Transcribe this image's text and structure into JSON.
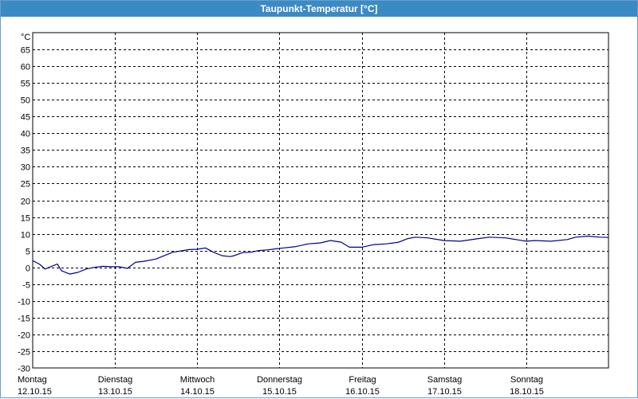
{
  "window": {
    "title": "Taupunkt-Temperatur [°C]"
  },
  "chart_data": {
    "type": "line",
    "title": "Taupunkt-Temperatur [°C]",
    "ylabel": "°C",
    "xlabel": "",
    "ylim": [
      -30,
      70
    ],
    "yticks": [
      65,
      60,
      55,
      50,
      45,
      40,
      35,
      30,
      25,
      20,
      15,
      10,
      5,
      0,
      -5,
      -10,
      -15,
      -20,
      -25,
      -30
    ],
    "xlim": [
      0,
      7
    ],
    "xticks": [
      {
        "day": "Montag",
        "date": "12.10.15"
      },
      {
        "day": "Dienstag",
        "date": "13.10.15"
      },
      {
        "day": "Mittwoch",
        "date": "14.10.15"
      },
      {
        "day": "Donnerstag",
        "date": "15.10.15"
      },
      {
        "day": "Freitag",
        "date": "16.10.15"
      },
      {
        "day": "Samstag",
        "date": "17.10.15"
      },
      {
        "day": "Sonntag",
        "date": "18.10.15"
      }
    ],
    "grid": true,
    "series": [
      {
        "color": "#00008b",
        "x": [
          0,
          0.08,
          0.15,
          0.2,
          0.25,
          0.3,
          0.35,
          0.45,
          0.55,
          0.65,
          0.75,
          0.85,
          0.95,
          1.05,
          1.15,
          1.25,
          1.35,
          1.5,
          1.7,
          1.9,
          2.0,
          2.1,
          2.2,
          2.3,
          2.4,
          2.45,
          2.55,
          2.65,
          2.75,
          2.85,
          2.95,
          3.05,
          3.2,
          3.35,
          3.5,
          3.62,
          3.75,
          3.85,
          4.0,
          4.15,
          4.3,
          4.45,
          4.55,
          4.65,
          4.8,
          5.0,
          5.2,
          5.4,
          5.55,
          5.75,
          5.9,
          6.0,
          6.1,
          6.3,
          6.5,
          6.6,
          6.75,
          6.9,
          7.0
        ],
        "y": [
          2,
          1,
          -0.5,
          0,
          0.5,
          1,
          -1,
          -2,
          -1.5,
          -0.5,
          0,
          0.3,
          0.2,
          0.2,
          -0.3,
          1.5,
          1.8,
          2.5,
          4.5,
          5.3,
          5.4,
          5.8,
          4.5,
          3.5,
          3.2,
          3.5,
          4.4,
          4.5,
          5,
          5.2,
          5.5,
          5.8,
          6.2,
          7.0,
          7.3,
          8.0,
          7.5,
          6.0,
          6.0,
          6.8,
          7.0,
          7.5,
          8.5,
          9.0,
          8.8,
          8.0,
          7.8,
          8.5,
          9.0,
          8.8,
          8.2,
          7.8,
          8.0,
          7.8,
          8.3,
          9.0,
          9.3,
          9.0,
          8.9
        ]
      }
    ]
  }
}
